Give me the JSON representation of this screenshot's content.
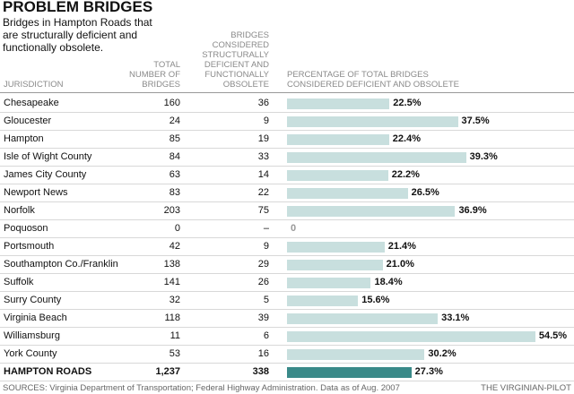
{
  "title": "PROBLEM BRIDGES",
  "subtitle": [
    "Bridges in Hampton Roads that",
    "are structurally deficient and",
    "functionally obsolete."
  ],
  "columns": {
    "jurisdiction": [
      "JURISDICTION"
    ],
    "total": [
      "TOTAL",
      "NUMBER OF",
      "BRIDGES"
    ],
    "deficient": [
      "BRIDGES",
      "CONSIDERED",
      "STRUCTURALLY",
      "DEFICIENT AND",
      "FUNCTIONALLY",
      "OBSOLETE"
    ],
    "percent": [
      "PERCENTAGE OF TOTAL BRIDGES",
      "CONSIDERED DEFICIENT AND OBSOLETE"
    ]
  },
  "rows": [
    {
      "jurisdiction": "Chesapeake",
      "total": 160,
      "deficient": 36,
      "percent": 22.5,
      "percent_label": "22.5%"
    },
    {
      "jurisdiction": "Gloucester",
      "total": 24,
      "deficient": 9,
      "percent": 37.5,
      "percent_label": "37.5%"
    },
    {
      "jurisdiction": "Hampton",
      "total": 85,
      "deficient": 19,
      "percent": 22.4,
      "percent_label": "22.4%"
    },
    {
      "jurisdiction": "Isle of Wight County",
      "total": 84,
      "deficient": 33,
      "percent": 39.3,
      "percent_label": "39.3%"
    },
    {
      "jurisdiction": "James City County",
      "total": 63,
      "deficient": 14,
      "percent": 22.2,
      "percent_label": "22.2%"
    },
    {
      "jurisdiction": "Newport News",
      "total": 83,
      "deficient": 22,
      "percent": 26.5,
      "percent_label": "26.5%"
    },
    {
      "jurisdiction": "Norfolk",
      "total": 203,
      "deficient": 75,
      "percent": 36.9,
      "percent_label": "36.9%"
    },
    {
      "jurisdiction": "Poquoson",
      "total": 0,
      "deficient": "–",
      "percent": 0,
      "percent_label": "0"
    },
    {
      "jurisdiction": "Portsmouth",
      "total": 42,
      "deficient": 9,
      "percent": 21.4,
      "percent_label": "21.4%"
    },
    {
      "jurisdiction": "Southampton Co./Franklin",
      "total": 138,
      "deficient": 29,
      "percent": 21.0,
      "percent_label": "21.0%"
    },
    {
      "jurisdiction": "Suffolk",
      "total": 141,
      "deficient": 26,
      "percent": 18.4,
      "percent_label": "18.4%"
    },
    {
      "jurisdiction": "Surry County",
      "total": 32,
      "deficient": 5,
      "percent": 15.6,
      "percent_label": "15.6%"
    },
    {
      "jurisdiction": "Virginia Beach",
      "total": 118,
      "deficient": 39,
      "percent": 33.1,
      "percent_label": "33.1%"
    },
    {
      "jurisdiction": "Williamsburg",
      "total": 11,
      "deficient": 6,
      "percent": 54.5,
      "percent_label": "54.5%"
    },
    {
      "jurisdiction": "York County",
      "total": 53,
      "deficient": 16,
      "percent": 30.2,
      "percent_label": "30.2%"
    }
  ],
  "total_row": {
    "jurisdiction": "HAMPTON ROADS",
    "total": "1,237",
    "deficient": 338,
    "percent": 27.3,
    "percent_label": "27.3%"
  },
  "source": "SOURCES: Virginia Department of Transportation; Federal Highway Administration. Data as of Aug. 2007",
  "credit": "THE VIRGINIAN-PILOT"
}
